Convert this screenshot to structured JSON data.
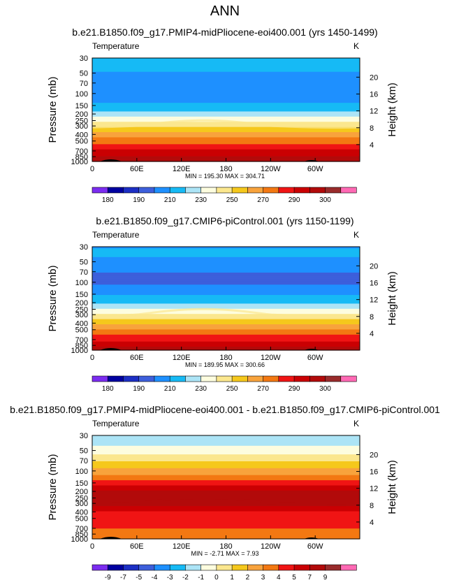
{
  "figure": {
    "supertitle": "ANN"
  },
  "chart_data": [
    {
      "type": "heatmap",
      "title": "b.e21.B1850.f09_g17.PMIP4-midPliocene-eoi400.001 (yrs 1450-1499)",
      "left_label": "Temperature",
      "units": "K",
      "ylabel": "Pressure  (mb)",
      "ylabel_right": "Height  (km)",
      "x_ticks": [
        "0",
        "60E",
        "120E",
        "180",
        "120W",
        "60W"
      ],
      "x_tick_values": [
        0,
        60,
        120,
        180,
        240,
        300
      ],
      "xlim": [
        0,
        360
      ],
      "y_ticks": [
        "30",
        "50",
        "70",
        "100",
        "150",
        "200",
        "250",
        "300",
        "400",
        "500",
        "700",
        "850",
        "1000"
      ],
      "y_tick_values": [
        30,
        50,
        70,
        100,
        150,
        200,
        250,
        300,
        400,
        500,
        700,
        850,
        1000
      ],
      "ylim": [
        30,
        1000
      ],
      "y_scale": "log",
      "right_ticks": [
        "4",
        "8",
        "12",
        "16",
        "20"
      ],
      "stats": "MIN = 195.30   MAX = 304.71",
      "colorbar_labels": [
        "180",
        "190",
        "210",
        "230",
        "250",
        "270",
        "290",
        "300"
      ],
      "colorbar_colors": [
        "#7b2cf0",
        "#0000a0",
        "#1c2fc4",
        "#3d5fdb",
        "#1e90ff",
        "#16baf5",
        "#ace4f6",
        "#fdfddf",
        "#fbe78e",
        "#f5c81c",
        "#f8a33c",
        "#f37812",
        "#f01414",
        "#ca0003",
        "#b20a0a",
        "#992b2b",
        "#ff69b4"
      ],
      "profile": {
        "pressure": [
          30,
          40,
          50,
          70,
          100,
          120,
          150,
          200,
          250,
          300,
          400,
          500,
          600,
          700,
          850,
          1000
        ],
        "values": [
          212,
          213,
          211,
          205,
          203,
          207,
          213,
          223,
          233,
          241,
          255,
          265,
          273,
          279,
          287,
          294
        ]
      }
    },
    {
      "type": "heatmap",
      "title": "b.e21.B1850.f09_g17.CMIP6-piControl.001 (yrs 1150-1199)",
      "left_label": "Temperature",
      "units": "K",
      "ylabel": "Pressure  (mb)",
      "ylabel_right": "Height  (km)",
      "x_ticks": [
        "0",
        "60E",
        "120E",
        "180",
        "120W",
        "60W"
      ],
      "x_tick_values": [
        0,
        60,
        120,
        180,
        240,
        300
      ],
      "xlim": [
        0,
        360
      ],
      "y_ticks": [
        "30",
        "50",
        "70",
        "100",
        "150",
        "200",
        "250",
        "300",
        "400",
        "500",
        "700",
        "850",
        "1000"
      ],
      "y_tick_values": [
        30,
        50,
        70,
        100,
        150,
        200,
        250,
        300,
        400,
        500,
        700,
        850,
        1000
      ],
      "ylim": [
        30,
        1000
      ],
      "y_scale": "log",
      "right_ticks": [
        "4",
        "8",
        "12",
        "16",
        "20"
      ],
      "stats": "MIN = 189.95   MAX = 300.66",
      "colorbar_labels": [
        "180",
        "190",
        "210",
        "230",
        "250",
        "270",
        "290",
        "300"
      ],
      "colorbar_colors": [
        "#7b2cf0",
        "#0000a0",
        "#1c2fc4",
        "#3d5fdb",
        "#1e90ff",
        "#16baf5",
        "#ace4f6",
        "#fdfddf",
        "#fbe78e",
        "#f5c81c",
        "#f8a33c",
        "#f37812",
        "#f01414",
        "#ca0003",
        "#b20a0a",
        "#992b2b",
        "#ff69b4"
      ],
      "profile": {
        "pressure": [
          30,
          40,
          50,
          70,
          100,
          120,
          150,
          200,
          250,
          300,
          400,
          500,
          600,
          700,
          850,
          1000
        ],
        "values": [
          211,
          212,
          209,
          203,
          201,
          205,
          211,
          219,
          229,
          237,
          251,
          261,
          269,
          275,
          283,
          290
        ]
      }
    },
    {
      "type": "heatmap",
      "title": "b.e21.B1850.f09_g17.PMIP4-midPliocene-eoi400.001 - b.e21.B1850.f09_g17.CMIP6-piControl.001",
      "left_label": "Temperature",
      "units": "K",
      "ylabel": "Pressure  (mb)",
      "ylabel_right": "Height  (km)",
      "x_ticks": [
        "0",
        "60E",
        "120E",
        "180",
        "120W",
        "60W"
      ],
      "x_tick_values": [
        0,
        60,
        120,
        180,
        240,
        300
      ],
      "xlim": [
        0,
        360
      ],
      "y_ticks": [
        "30",
        "50",
        "70",
        "100",
        "150",
        "200",
        "250",
        "300",
        "400",
        "500",
        "700",
        "850",
        "1000"
      ],
      "y_tick_values": [
        30,
        50,
        70,
        100,
        150,
        200,
        250,
        300,
        400,
        500,
        700,
        850,
        1000
      ],
      "ylim": [
        30,
        1000
      ],
      "y_scale": "log",
      "right_ticks": [
        "4",
        "8",
        "12",
        "16",
        "20"
      ],
      "stats": "MIN =   -2.71   MAX =     7.93",
      "colorbar_labels": [
        "-9",
        "-7",
        "-5",
        "-4",
        "-3",
        "-2",
        "-1",
        "0",
        "1",
        "2",
        "3",
        "4",
        "5",
        "7",
        "9"
      ],
      "colorbar_colors": [
        "#7b2cf0",
        "#0000a0",
        "#1c2fc4",
        "#3d5fdb",
        "#1e90ff",
        "#16baf5",
        "#ace4f6",
        "#fdfddf",
        "#fbe78e",
        "#f5c81c",
        "#f8a33c",
        "#f37812",
        "#f01414",
        "#ca0003",
        "#b20a0a",
        "#992b2b",
        "#ff69b4"
      ],
      "profile": {
        "pressure": [
          30,
          40,
          50,
          60,
          70,
          85,
          100,
          130,
          160,
          200,
          300,
          400,
          500,
          700,
          850,
          1000
        ],
        "values": [
          -2.5,
          -2.2,
          -1.5,
          -0.5,
          0.5,
          1.5,
          2.5,
          4.2,
          5.5,
          7.5,
          7.7,
          5.5,
          5.5,
          4.5,
          3.5,
          3.2
        ]
      }
    }
  ]
}
